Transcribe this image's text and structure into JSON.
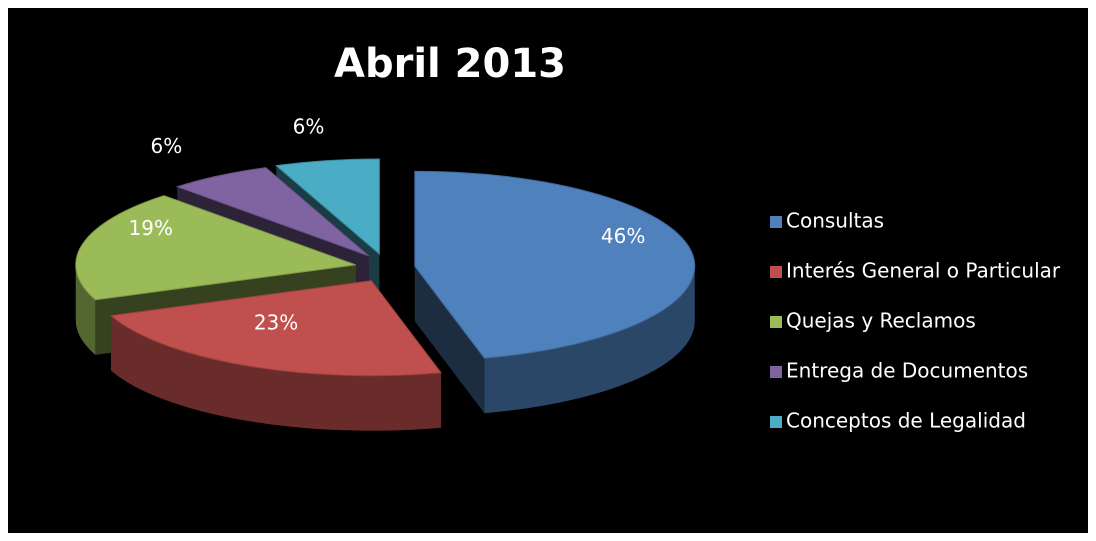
{
  "chart_data": {
    "type": "pie3d",
    "title": "Abril 2013",
    "categories": [
      "Consultas",
      "Interés General o Particular",
      "Quejas y Reclamos",
      "Entrega de Documentos",
      "Conceptos de Legalidad"
    ],
    "values": [
      46,
      23,
      19,
      6,
      6
    ],
    "value_labels": [
      "46%",
      "23%",
      "19%",
      "6%",
      "6%"
    ],
    "colors": [
      "#4f81bd",
      "#c0504d",
      "#9bbb59",
      "#8064a2",
      "#4bacc6"
    ],
    "legend": "right"
  }
}
